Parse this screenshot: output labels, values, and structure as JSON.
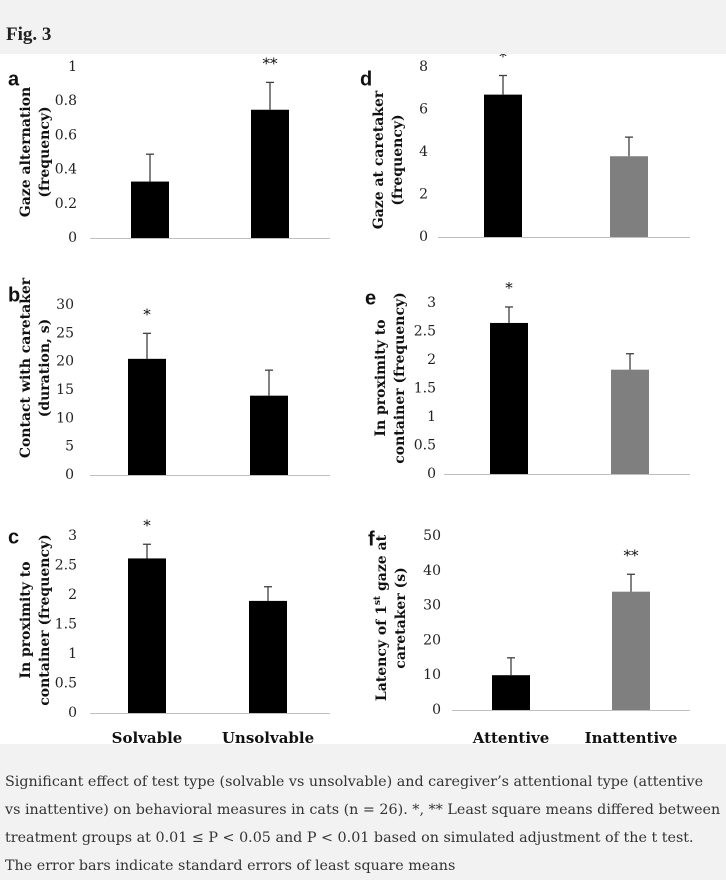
{
  "figure": {
    "title": "Fig. 3",
    "caption": "Significant effect of test type (solvable vs unsolvable) and caregiver’s attentional type (attentive vs inattentive) on behavioral measures in cats (n = 26). *, ** Least square means differed between treatment groups at 0.01 ≤ P < 0.05 and P < 0.01 based on simulated adjustment of the t test. The error bars indicate standard errors of least square means"
  },
  "colors": {
    "solvable_bar": "#000000",
    "unsolvable_bar": "#000000",
    "attentive_bar": "#000000",
    "inattentive_bar": "#7f7f7f",
    "error_bar": "#404040",
    "axis": "#bfbfbf"
  },
  "chart_data": [
    {
      "panel": "a",
      "type": "bar",
      "ylabel": [
        "Gaze alternation",
        "(frequency)"
      ],
      "categories": [
        "Solvable",
        "Unsolvable"
      ],
      "values": [
        0.33,
        0.75
      ],
      "errors": [
        0.16,
        0.16
      ],
      "significance": [
        "",
        "**"
      ],
      "ylim": [
        0,
        1
      ],
      "yticks": [
        "0",
        "0.2",
        "0.4",
        "0.6",
        "0.8",
        "1"
      ]
    },
    {
      "panel": "b",
      "type": "bar",
      "ylabel": [
        "Contact with caretaker",
        "(duration, s)"
      ],
      "categories": [
        "Solvable",
        "Unsolvable"
      ],
      "values": [
        20.5,
        14
      ],
      "errors": [
        4.5,
        4.5
      ],
      "significance": [
        "*",
        ""
      ],
      "ylim": [
        0,
        30
      ],
      "yticks": [
        "0",
        "5",
        "10",
        "15",
        "20",
        "25",
        "30"
      ]
    },
    {
      "panel": "c",
      "type": "bar",
      "ylabel": [
        "In proximity to",
        "container (frequency)"
      ],
      "categories": [
        "Solvable",
        "Unsolvable"
      ],
      "values": [
        2.62,
        1.9
      ],
      "errors": [
        0.24,
        0.24
      ],
      "significance": [
        "*",
        ""
      ],
      "ylim": [
        0,
        3
      ],
      "yticks": [
        "0",
        "0.5",
        "1",
        "1.5",
        "2",
        "2.5",
        "3"
      ],
      "xlabels_visible": true
    },
    {
      "panel": "d",
      "type": "bar",
      "ylabel": [
        "Gaze at caretaker",
        "(frequency)"
      ],
      "categories": [
        "Attentive",
        "Inattentive"
      ],
      "values": [
        6.7,
        3.8
      ],
      "errors": [
        0.9,
        0.9
      ],
      "significance": [
        "*",
        ""
      ],
      "ylim": [
        0,
        8
      ],
      "yticks": [
        "0",
        "2",
        "4",
        "6",
        "8"
      ]
    },
    {
      "panel": "e",
      "type": "bar",
      "ylabel": [
        "In proximity to",
        "container (frequency)"
      ],
      "categories": [
        "Attentive",
        "Inattentive"
      ],
      "values": [
        2.65,
        1.83
      ],
      "errors": [
        0.28,
        0.28
      ],
      "significance": [
        "*",
        ""
      ],
      "ylim": [
        0,
        3
      ],
      "yticks": [
        "0",
        "0.5",
        "1",
        "1.5",
        "2",
        "2.5",
        "3"
      ]
    },
    {
      "panel": "f",
      "type": "bar",
      "ylabel": [
        "Latency of 1st gaze at",
        "caretaker (s)"
      ],
      "categories": [
        "Attentive",
        "Inattentive"
      ],
      "values": [
        10,
        34
      ],
      "errors": [
        5,
        5
      ],
      "significance": [
        "",
        "**"
      ],
      "ylim": [
        0,
        50
      ],
      "yticks": [
        "0",
        "10",
        "20",
        "30",
        "40",
        "50"
      ],
      "xlabels_visible": true
    }
  ]
}
